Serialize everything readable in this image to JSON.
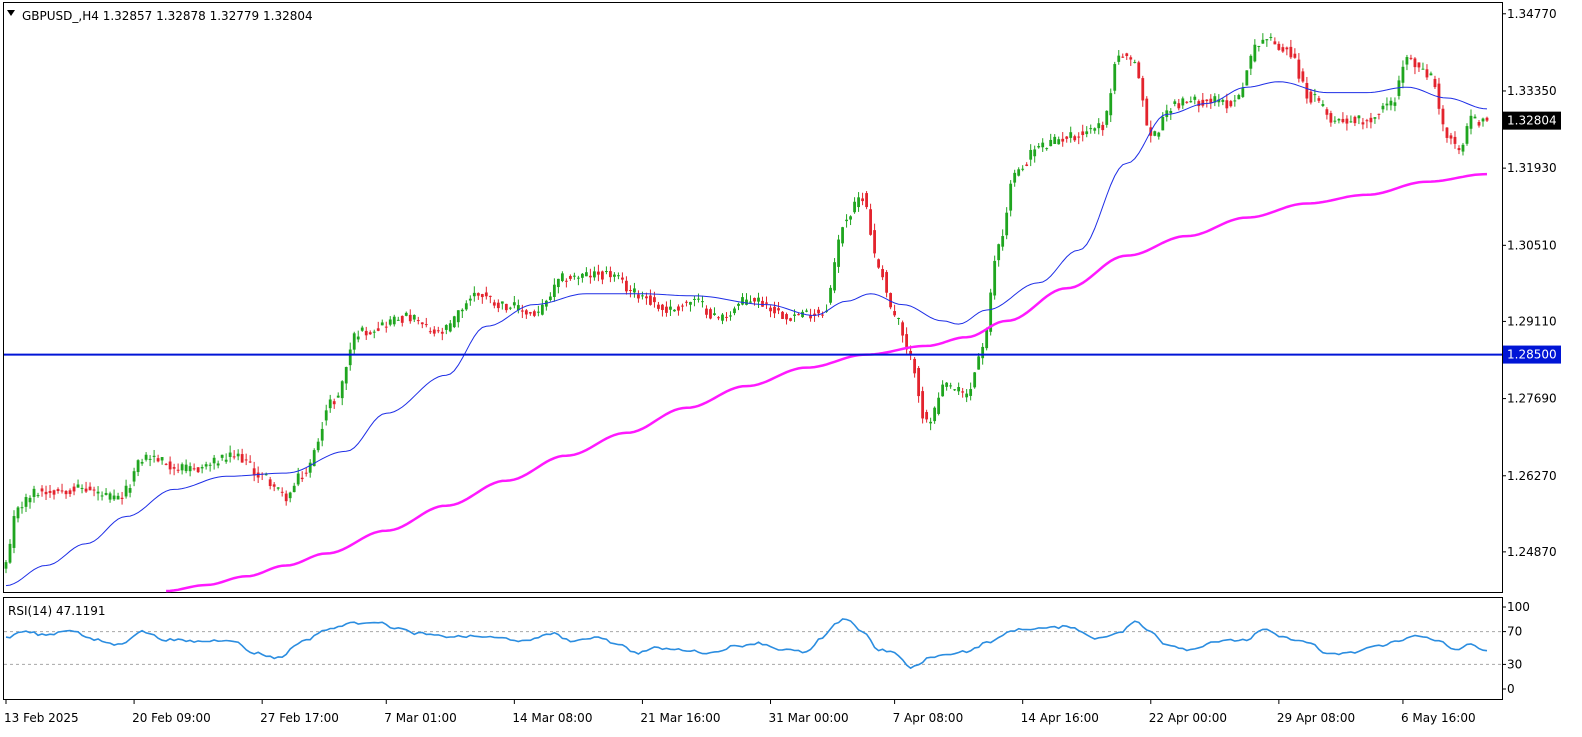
{
  "header": {
    "symbol_line": "GBPUSD_,H4  1.32857 1.32878 1.32779 1.32804"
  },
  "rsi": {
    "label": "RSI(14) 47.1191",
    "levels": [
      100,
      70,
      30,
      0
    ],
    "ticks": [
      "100",
      "70",
      "30",
      "0"
    ]
  },
  "colors": {
    "bull": "#1fa51f",
    "bear": "#e3232d",
    "ma_fast": "#1e2ee6",
    "ma_slow": "#ff19ff",
    "level_line": "#0015d6",
    "rsi_line": "#2b8de0",
    "current_price_bg": "#000000",
    "level_price_bg": "#0015d6"
  },
  "chart_data": [
    {
      "type": "candlestick",
      "title": "GBPUSD_,H4",
      "ohlc_header": {
        "open": 1.32857,
        "high": 1.32878,
        "low": 1.32779,
        "close": 1.32804
      },
      "ylim": [
        1.2415,
        1.3495
      ],
      "y_ticks": [
        "1.34770",
        "1.33350",
        "1.31930",
        "1.30510",
        "1.29110",
        "1.27690",
        "1.26270",
        "1.24870"
      ],
      "y_tick_values": [
        1.3477,
        1.3335,
        1.3193,
        1.3051,
        1.2911,
        1.2769,
        1.2627,
        1.2487
      ],
      "x_ticks": [
        "13 Feb 2025",
        "20 Feb 09:00",
        "27 Feb 17:00",
        "7 Mar 01:00",
        "14 Mar 08:00",
        "21 Mar 16:00",
        "31 Mar 00:00",
        "7 Apr 08:00",
        "14 Apr 16:00",
        "22 Apr 00:00",
        "29 Apr 08:00",
        "6 May 16:00"
      ],
      "x_tick_bars": [
        0,
        32,
        64,
        95,
        127,
        159,
        191,
        222,
        254,
        286,
        318,
        349
      ],
      "current_price": {
        "label": "1.32804",
        "value": 1.32804
      },
      "horizontal_line": {
        "label": "1.28500",
        "value": 1.285
      },
      "series": [
        {
          "name": "close",
          "anchors": [
            [
              0,
              1.2465
            ],
            [
              3,
              1.2572
            ],
            [
              8,
              1.2598
            ],
            [
              18,
              1.2604
            ],
            [
              28,
              1.2584
            ],
            [
              35,
              1.2662
            ],
            [
              45,
              1.2638
            ],
            [
              58,
              1.2662
            ],
            [
              64,
              1.2626
            ],
            [
              70,
              1.2588
            ],
            [
              74,
              1.2627
            ],
            [
              82,
              1.2766
            ],
            [
              88,
              1.2892
            ],
            [
              100,
              1.2918
            ],
            [
              108,
              1.2888
            ],
            [
              118,
              1.2962
            ],
            [
              124,
              1.2942
            ],
            [
              132,
              1.2925
            ],
            [
              140,
              1.2992
            ],
            [
              150,
              1.2998
            ],
            [
              158,
              1.2962
            ],
            [
              165,
              1.2932
            ],
            [
              172,
              1.2948
            ],
            [
              178,
              1.2918
            ],
            [
              186,
              1.2952
            ],
            [
              196,
              1.2922
            ],
            [
              204,
              1.2928
            ],
            [
              210,
              1.3102
            ],
            [
              214,
              1.3142
            ],
            [
              218,
              1.3012
            ],
            [
              222,
              1.2922
            ],
            [
              226,
              1.2842
            ],
            [
              230,
              1.2722
            ],
            [
              235,
              1.2792
            ],
            [
              240,
              1.2775
            ],
            [
              244,
              1.2862
            ],
            [
              248,
              1.3052
            ],
            [
              252,
              1.3182
            ],
            [
              258,
              1.3232
            ],
            [
              266,
              1.3252
            ],
            [
              274,
              1.3272
            ],
            [
              278,
              1.3402
            ],
            [
              282,
              1.3382
            ],
            [
              286,
              1.3252
            ],
            [
              292,
              1.3312
            ],
            [
              300,
              1.3318
            ],
            [
              306,
              1.3312
            ],
            [
              314,
              1.3432
            ],
            [
              320,
              1.3412
            ],
            [
              326,
              1.3322
            ],
            [
              332,
              1.3282
            ],
            [
              340,
              1.3282
            ],
            [
              346,
              1.3312
            ],
            [
              350,
              1.3392
            ],
            [
              356,
              1.3362
            ],
            [
              360,
              1.3252
            ],
            [
              363,
              1.3222
            ],
            [
              366,
              1.3282
            ],
            [
              370,
              1.328
            ]
          ]
        },
        {
          "name": "ma_fast",
          "anchors": [
            [
              0,
              1.2425
            ],
            [
              10,
              1.2462
            ],
            [
              20,
              1.2502
            ],
            [
              30,
              1.2552
            ],
            [
              42,
              1.2602
            ],
            [
              55,
              1.2626
            ],
            [
              70,
              1.2632
            ],
            [
              85,
              1.2672
            ],
            [
              95,
              1.2742
            ],
            [
              110,
              1.2812
            ],
            [
              120,
              1.2902
            ],
            [
              132,
              1.2942
            ],
            [
              145,
              1.2962
            ],
            [
              158,
              1.2962
            ],
            [
              172,
              1.2958
            ],
            [
              190,
              1.2942
            ],
            [
              202,
              1.2922
            ],
            [
              210,
              1.2948
            ],
            [
              216,
              1.2962
            ],
            [
              224,
              1.2942
            ],
            [
              234,
              1.2912
            ],
            [
              238,
              1.2906
            ],
            [
              245,
              1.2932
            ],
            [
              258,
              1.2982
            ],
            [
              268,
              1.3042
            ],
            [
              280,
              1.3202
            ],
            [
              290,
              1.3292
            ],
            [
              300,
              1.3312
            ],
            [
              310,
              1.3342
            ],
            [
              318,
              1.3352
            ],
            [
              330,
              1.3332
            ],
            [
              340,
              1.3332
            ],
            [
              350,
              1.3342
            ],
            [
              360,
              1.3322
            ],
            [
              370,
              1.3302
            ]
          ]
        },
        {
          "name": "ma_slow",
          "anchors": [
            [
              40,
              1.2415
            ],
            [
              50,
              1.2426
            ],
            [
              60,
              1.2442
            ],
            [
              70,
              1.2462
            ],
            [
              80,
              1.2484
            ],
            [
              95,
              1.2526
            ],
            [
              110,
              1.2572
            ],
            [
              125,
              1.2618
            ],
            [
              140,
              1.2664
            ],
            [
              155,
              1.2706
            ],
            [
              170,
              1.2752
            ],
            [
              185,
              1.2792
            ],
            [
              200,
              1.2826
            ],
            [
              215,
              1.285
            ],
            [
              230,
              1.2866
            ],
            [
              240,
              1.2882
            ],
            [
              250,
              1.2912
            ],
            [
              265,
              1.2972
            ],
            [
              280,
              1.3032
            ],
            [
              295,
              1.3068
            ],
            [
              310,
              1.3102
            ],
            [
              325,
              1.3128
            ],
            [
              340,
              1.3144
            ],
            [
              355,
              1.3168
            ],
            [
              370,
              1.3182
            ]
          ]
        },
        {
          "name": "rsi",
          "anchors": [
            [
              0,
              62
            ],
            [
              4,
              70
            ],
            [
              10,
              66
            ],
            [
              16,
              72
            ],
            [
              22,
              60
            ],
            [
              28,
              54
            ],
            [
              34,
              70
            ],
            [
              40,
              60
            ],
            [
              48,
              58
            ],
            [
              56,
              60
            ],
            [
              62,
              44
            ],
            [
              68,
              38
            ],
            [
              74,
              58
            ],
            [
              80,
              72
            ],
            [
              86,
              80
            ],
            [
              92,
              82
            ],
            [
              98,
              74
            ],
            [
              102,
              68
            ],
            [
              110,
              64
            ],
            [
              118,
              64
            ],
            [
              124,
              62
            ],
            [
              130,
              58
            ],
            [
              136,
              68
            ],
            [
              142,
              58
            ],
            [
              148,
              64
            ],
            [
              152,
              56
            ],
            [
              158,
              44
            ],
            [
              162,
              50
            ],
            [
              168,
              48
            ],
            [
              176,
              44
            ],
            [
              182,
              52
            ],
            [
              188,
              56
            ],
            [
              194,
              48
            ],
            [
              200,
              45
            ],
            [
              204,
              62
            ],
            [
              207,
              78
            ],
            [
              210,
              86
            ],
            [
              214,
              70
            ],
            [
              218,
              48
            ],
            [
              222,
              44
            ],
            [
              226,
              26
            ],
            [
              232,
              40
            ],
            [
              240,
              46
            ],
            [
              246,
              58
            ],
            [
              252,
              72
            ],
            [
              258,
              74
            ],
            [
              266,
              76
            ],
            [
              272,
              62
            ],
            [
              278,
              68
            ],
            [
              282,
              82
            ],
            [
              286,
              70
            ],
            [
              290,
              54
            ],
            [
              296,
              48
            ],
            [
              302,
              58
            ],
            [
              310,
              60
            ],
            [
              314,
              72
            ],
            [
              320,
              62
            ],
            [
              326,
              56
            ],
            [
              330,
              42
            ],
            [
              336,
              44
            ],
            [
              342,
              52
            ],
            [
              348,
              58
            ],
            [
              352,
              66
            ],
            [
              358,
              58
            ],
            [
              362,
              48
            ],
            [
              366,
              54
            ],
            [
              370,
              47
            ]
          ]
        }
      ]
    }
  ]
}
